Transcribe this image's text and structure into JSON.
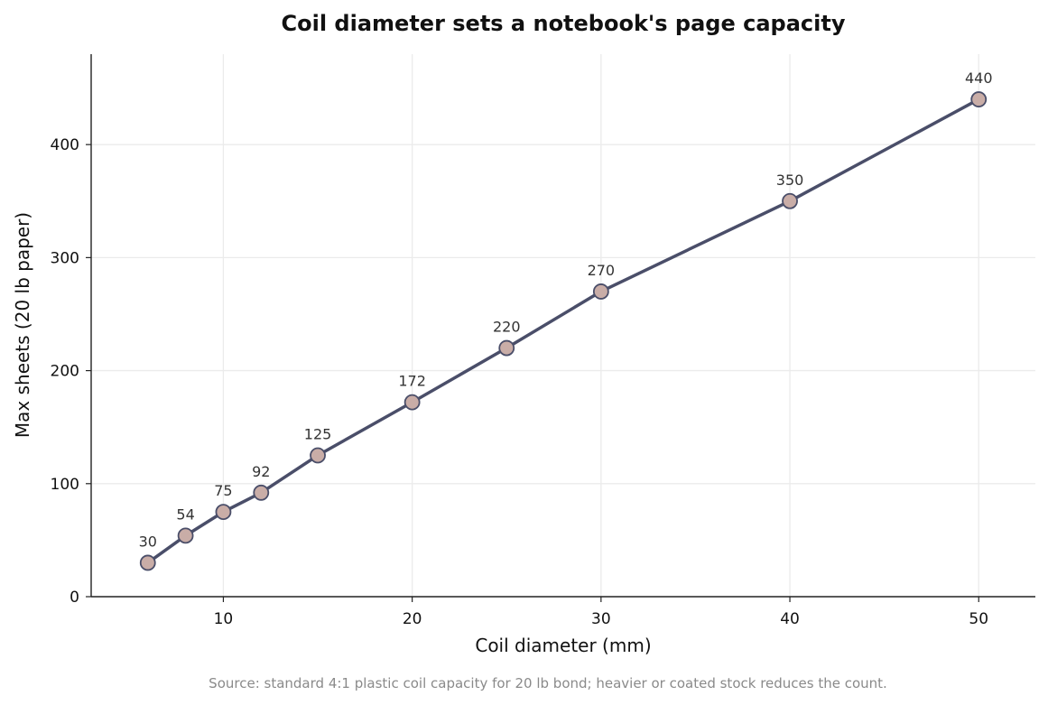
{
  "chart_data": {
    "type": "line",
    "title": "Coil diameter sets a notebook's page capacity",
    "xlabel": "Coil diameter (mm)",
    "ylabel": "Max sheets (20 lb paper)",
    "xlim": [
      3,
      53
    ],
    "ylim": [
      0,
      480
    ],
    "xticks": [
      10,
      20,
      30,
      40,
      50
    ],
    "yticks": [
      0,
      100,
      200,
      300,
      400
    ],
    "grid": true,
    "series": [
      {
        "x": [
          6,
          8,
          10,
          12,
          15,
          20,
          25,
          30,
          40,
          50
        ],
        "values": [
          30,
          54,
          75,
          92,
          125,
          172,
          220,
          270,
          350,
          440
        ],
        "data_labels": [
          "30",
          "54",
          "75",
          "92",
          "125",
          "172",
          "220",
          "270",
          "350",
          "440"
        ]
      }
    ],
    "line_color": "#4a4e69",
    "marker_color": "#c9ada7",
    "source_note": "Source: standard 4:1 plastic coil capacity for 20 lb bond; heavier or coated stock reduces the count."
  }
}
